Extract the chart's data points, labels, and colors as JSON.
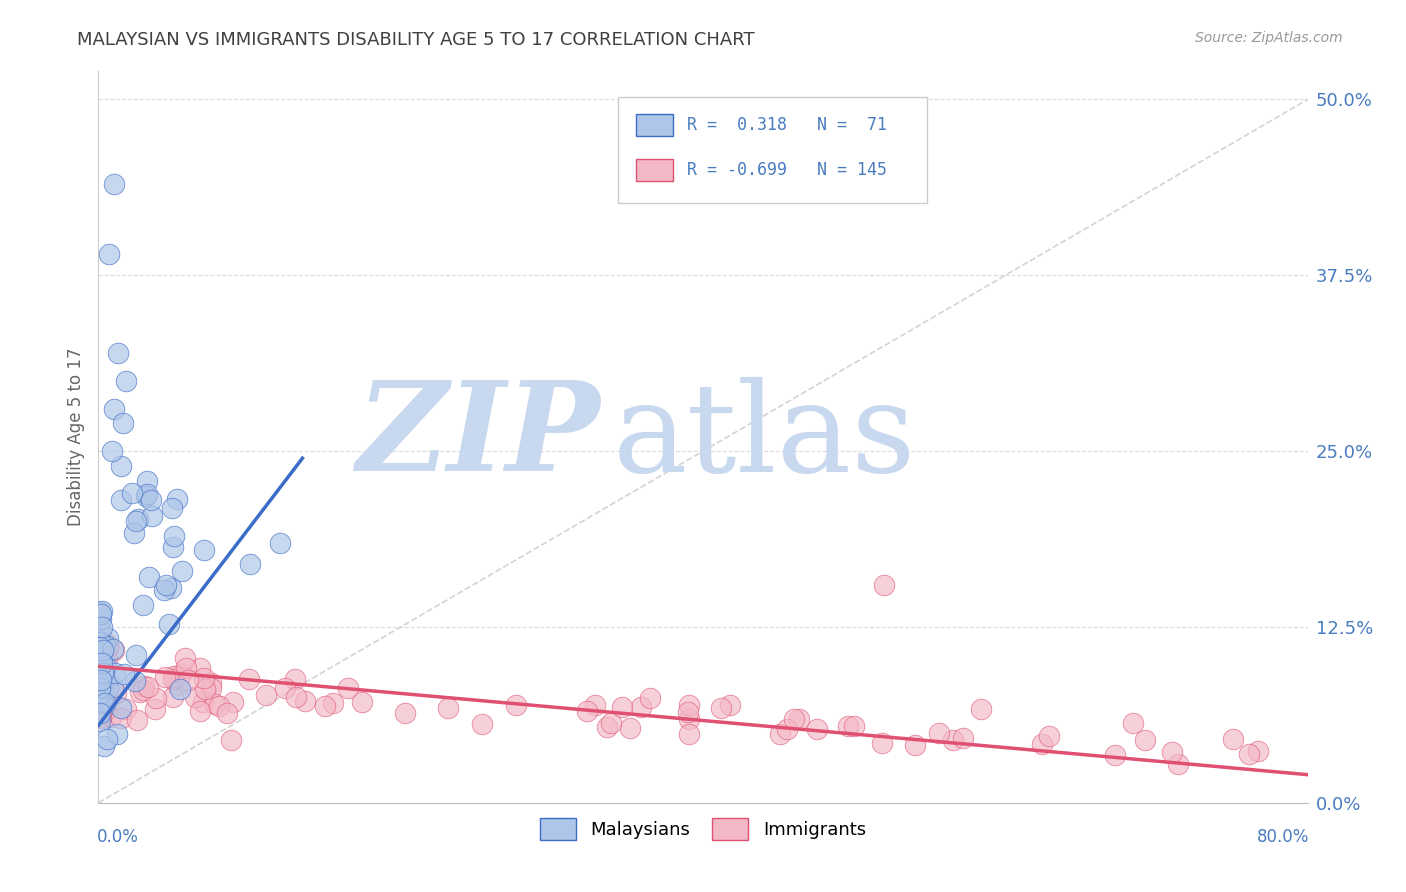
{
  "title": "MALAYSIAN VS IMMIGRANTS DISABILITY AGE 5 TO 17 CORRELATION CHART",
  "source": "Source: ZipAtlas.com",
  "ylabel": "Disability Age 5 to 17",
  "ytick_vals": [
    0.0,
    0.125,
    0.25,
    0.375,
    0.5
  ],
  "ytick_labels": [
    "0.0%",
    "12.5%",
    "25.0%",
    "37.5%",
    "50.0%"
  ],
  "xmin": 0.0,
  "xmax": 0.8,
  "ymin": 0.0,
  "ymax": 0.52,
  "color_malaysians": "#aec6e8",
  "color_immigrants": "#f2b8c6",
  "color_trend_malaysians": "#3a6cc8",
  "color_trend_immigrants": "#e05070",
  "color_diagonal": "#c8c8c8",
  "color_title": "#404040",
  "color_ytick": "#4a7cc0",
  "watermark_zip_color": "#c8d8ee",
  "watermark_atlas_color": "#c8d8ee",
  "background_color": "#ffffff",
  "grid_color": "#d8d8d8",
  "mal_trend_x0": 0.0,
  "mal_trend_x1": 0.135,
  "mal_trend_y0": 0.055,
  "mal_trend_y1": 0.245,
  "imm_trend_x0": 0.0,
  "imm_trend_x1": 0.8,
  "imm_trend_y0": 0.097,
  "imm_trend_y1": 0.02
}
